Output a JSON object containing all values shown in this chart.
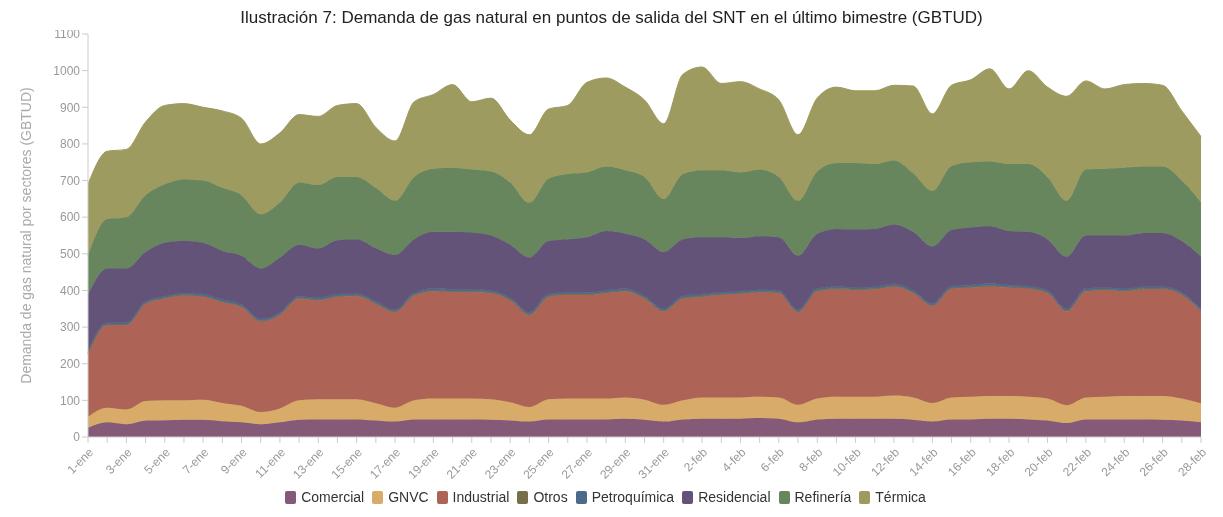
{
  "chart_data": {
    "type": "area",
    "stacked": true,
    "title": "Ilustración 7: Demanda de gas natural en puntos de salida del SNT en el último bimestre (GBTUD)",
    "ylabel": "Demanda de gas natural por sectores (GBTUD)",
    "categories": [
      "1-ene",
      null,
      "3-ene",
      null,
      "5-ene",
      null,
      "7-ene",
      null,
      "9-ene",
      null,
      "11-ene",
      null,
      "13-ene",
      null,
      "15-ene",
      null,
      "17-ene",
      null,
      "19-ene",
      null,
      "21-ene",
      null,
      "23-ene",
      null,
      "25-ene",
      null,
      "27-ene",
      null,
      "29-ene",
      null,
      "31-ene",
      null,
      "2-feb",
      null,
      "4-feb",
      null,
      "6-feb",
      null,
      "8-feb",
      null,
      "10-feb",
      null,
      "12-feb",
      null,
      "14-feb",
      null,
      "16-feb",
      null,
      "18-feb",
      null,
      "20-feb",
      null,
      "22-feb",
      null,
      "24-feb",
      null,
      "26-feb",
      null,
      "28-feb"
    ],
    "ylim": [
      0,
      1100
    ],
    "yticks": [
      0,
      100,
      200,
      300,
      400,
      500,
      600,
      700,
      800,
      900,
      1000,
      1100
    ],
    "legend": "bottom",
    "series": [
      {
        "name": "Comercial",
        "color": "#845a78",
        "values": [
          25,
          40,
          35,
          45,
          46,
          47,
          47,
          43,
          40,
          35,
          40,
          47,
          48,
          48,
          48,
          45,
          42,
          48,
          48,
          48,
          48,
          47,
          45,
          42,
          48,
          48,
          48,
          48,
          50,
          47,
          42,
          48,
          50,
          50,
          50,
          52,
          50,
          40,
          48,
          50,
          50,
          50,
          50,
          47,
          42,
          48,
          48,
          50,
          50,
          48,
          45,
          38,
          48,
          48,
          48,
          48,
          47,
          45,
          40
        ]
      },
      {
        "name": "GNVC",
        "color": "#d8ab68",
        "values": [
          30,
          40,
          40,
          53,
          54,
          53,
          55,
          50,
          45,
          33,
          38,
          53,
          55,
          55,
          55,
          47,
          38,
          52,
          57,
          57,
          57,
          56,
          50,
          40,
          55,
          57,
          57,
          57,
          58,
          55,
          46,
          52,
          58,
          58,
          58,
          58,
          58,
          48,
          57,
          60,
          60,
          60,
          63,
          61,
          51,
          60,
          62,
          62,
          62,
          62,
          60,
          49,
          60,
          62,
          64,
          64,
          65,
          60,
          52
        ]
      },
      {
        "name": "Industrial",
        "color": "#ad6457",
        "values": [
          173,
          225,
          230,
          265,
          278,
          286,
          281,
          275,
          270,
          247,
          255,
          278,
          270,
          280,
          282,
          271,
          261,
          286,
          293,
          291,
          291,
          290,
          278,
          251,
          280,
          283,
          283,
          288,
          290,
          276,
          255,
          278,
          275,
          280,
          283,
          285,
          285,
          253,
          293,
          293,
          291,
          293,
          298,
          285,
          265,
          297,
          298,
          299,
          296,
          295,
          288,
          256,
          290,
          291,
          286,
          291,
          291,
          283,
          251
        ]
      },
      {
        "name": "Otros",
        "color": "#76704a",
        "values": [
          2,
          2,
          2,
          2,
          2,
          2,
          2,
          2,
          2,
          2,
          2,
          2,
          2,
          2,
          2,
          2,
          2,
          2,
          2,
          2,
          2,
          2,
          2,
          2,
          2,
          2,
          2,
          2,
          2,
          2,
          2,
          2,
          2,
          2,
          2,
          2,
          2,
          2,
          2,
          2,
          2,
          2,
          2,
          2,
          2,
          2,
          2,
          2,
          2,
          2,
          2,
          2,
          2,
          2,
          2,
          2,
          2,
          2,
          2
        ]
      },
      {
        "name": "Petroquímica",
        "color": "#4e6a8a",
        "values": [
          5,
          5,
          5,
          5,
          5,
          5,
          5,
          5,
          5,
          5,
          5,
          5,
          5,
          5,
          5,
          5,
          5,
          5,
          5,
          5,
          5,
          5,
          5,
          5,
          5,
          5,
          5,
          5,
          5,
          5,
          5,
          5,
          5,
          5,
          5,
          5,
          5,
          5,
          5,
          5,
          5,
          5,
          5,
          5,
          5,
          5,
          5,
          5,
          5,
          5,
          5,
          5,
          5,
          5,
          5,
          5,
          5,
          5,
          5
        ]
      },
      {
        "name": "Residencial",
        "color": "#635378",
        "values": [
          153,
          148,
          148,
          135,
          145,
          143,
          140,
          133,
          133,
          138,
          150,
          140,
          135,
          147,
          148,
          145,
          149,
          147,
          155,
          157,
          155,
          150,
          145,
          150,
          145,
          145,
          150,
          162,
          150,
          155,
          155,
          155,
          155,
          150,
          145,
          146,
          145,
          147,
          150,
          158,
          159,
          158,
          162,
          160,
          155,
          153,
          157,
          157,
          147,
          148,
          140,
          142,
          145,
          142,
          145,
          147,
          147,
          140,
          142
        ]
      },
      {
        "name": "Refinería",
        "color": "#68865e",
        "values": [
          107,
          135,
          140,
          155,
          160,
          167,
          170,
          172,
          165,
          148,
          150,
          170,
          173,
          173,
          170,
          165,
          148,
          170,
          172,
          175,
          172,
          175,
          170,
          150,
          170,
          178,
          177,
          176,
          173,
          170,
          145,
          178,
          183,
          183,
          179,
          182,
          165,
          150,
          170,
          180,
          181,
          177,
          175,
          160,
          152,
          175,
          178,
          177,
          183,
          185,
          170,
          153,
          180,
          182,
          185,
          181,
          181,
          165,
          148
        ]
      },
      {
        "name": "Térmica",
        "color": "#9d9b5f",
        "values": [
          195,
          185,
          185,
          200,
          215,
          207,
          200,
          210,
          210,
          192,
          190,
          185,
          187,
          195,
          200,
          165,
          163,
          205,
          203,
          227,
          185,
          200,
          170,
          185,
          190,
          187,
          246,
          242,
          227,
          210,
          205,
          272,
          282,
          237,
          248,
          220,
          210,
          180,
          200,
          207,
          197,
          200,
          205,
          238,
          210,
          220,
          225,
          253,
          205,
          255,
          245,
          285,
          242,
          218,
          227,
          227,
          222,
          190,
          180
        ]
      }
    ]
  }
}
